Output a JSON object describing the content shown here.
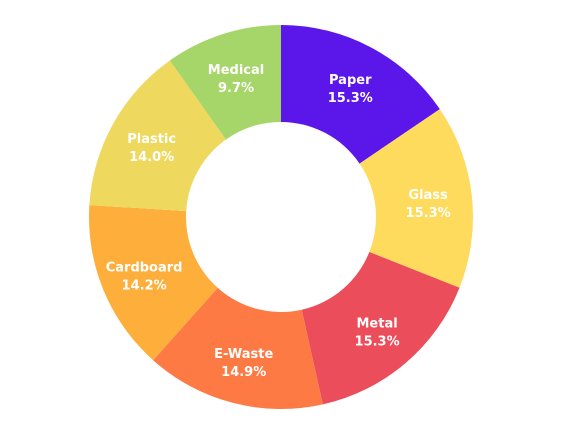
{
  "chart_data": {
    "type": "pie",
    "variant": "donut",
    "title": "",
    "legend": "none",
    "slices": [
      {
        "label": "Paper",
        "value": 15.3,
        "value_label": "15.3%",
        "color": "#5b16ea"
      },
      {
        "label": "Glass",
        "value": 15.3,
        "value_label": "15.3%",
        "color": "#fedb5c"
      },
      {
        "label": "Metal",
        "value": 15.3,
        "value_label": "15.3%",
        "color": "#eb4d5a"
      },
      {
        "label": "E-Waste",
        "value": 14.9,
        "value_label": "14.9%",
        "color": "#fd7a45"
      },
      {
        "label": "Cardboard",
        "value": 14.2,
        "value_label": "14.2%",
        "color": "#fdae3b"
      },
      {
        "label": "Plastic",
        "value": 14.0,
        "value_label": "14.0%",
        "color": "#eed85e"
      },
      {
        "label": "Medical",
        "value": 9.7,
        "value_label": "9.7%",
        "color": "#a6d66a"
      }
    ]
  }
}
